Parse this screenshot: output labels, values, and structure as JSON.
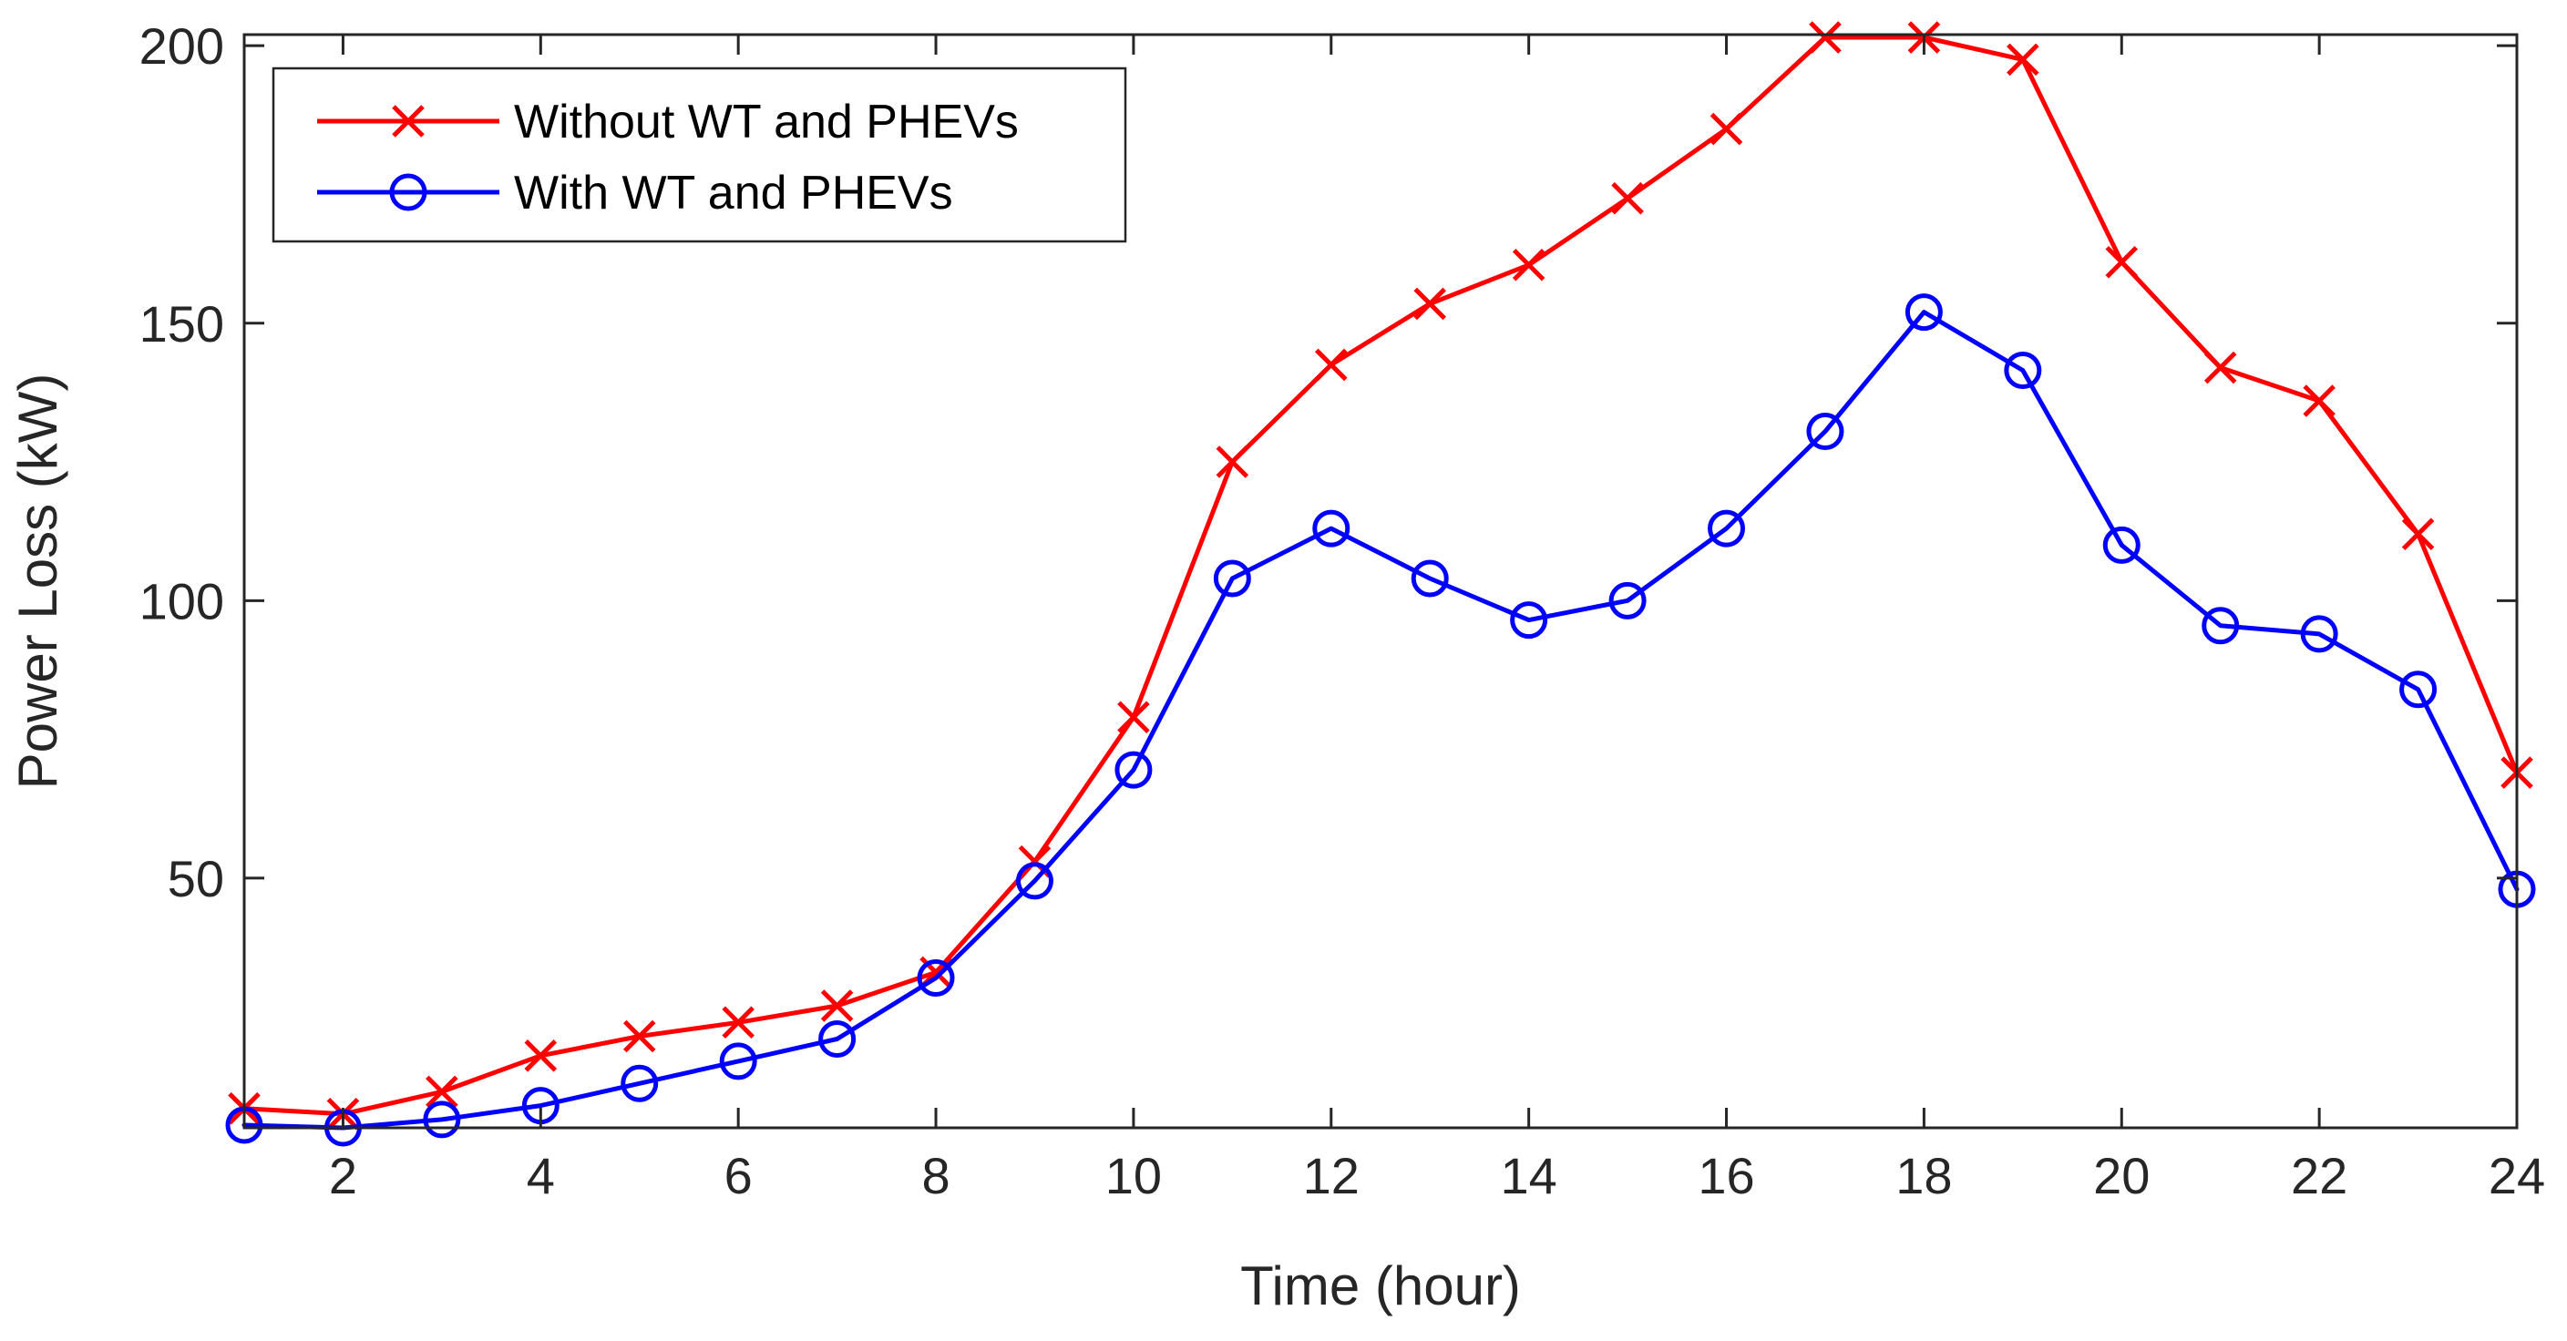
{
  "chart_data": {
    "type": "line",
    "title": "",
    "xlabel": "Time (hour)",
    "ylabel": "Power Loss (kW)",
    "xlim": [
      1,
      24
    ],
    "ylim": [
      5,
      202
    ],
    "x_ticks": [
      2,
      4,
      6,
      8,
      10,
      12,
      14,
      16,
      18,
      20,
      22,
      24
    ],
    "y_ticks": [
      50,
      100,
      150,
      200
    ],
    "grid": false,
    "legend_position": "top-left",
    "x": [
      1,
      2,
      3,
      4,
      5,
      6,
      7,
      8,
      9,
      10,
      11,
      12,
      13,
      14,
      15,
      16,
      17,
      18,
      19,
      20,
      21,
      22,
      23,
      24
    ],
    "series": [
      {
        "name": "Without WT and PHEVs",
        "color": "#ff0000",
        "marker": "x",
        "values": [
          8.5,
          7.5,
          11.5,
          18,
          21.5,
          24,
          27,
          33,
          53,
          79,
          125,
          142.5,
          153.5,
          160.5,
          172.5,
          185,
          201.5,
          201.5,
          197.5,
          161,
          142,
          136,
          112,
          69
        ]
      },
      {
        "name": "With WT and PHEVs",
        "color": "#0000ff",
        "marker": "o",
        "values": [
          5.5,
          5,
          6.5,
          9,
          13,
          17,
          21,
          32,
          49.5,
          69.5,
          104,
          113,
          104,
          96.5,
          100,
          113,
          130.5,
          152,
          141.5,
          110,
          95.5,
          94,
          84,
          48
        ]
      }
    ]
  }
}
